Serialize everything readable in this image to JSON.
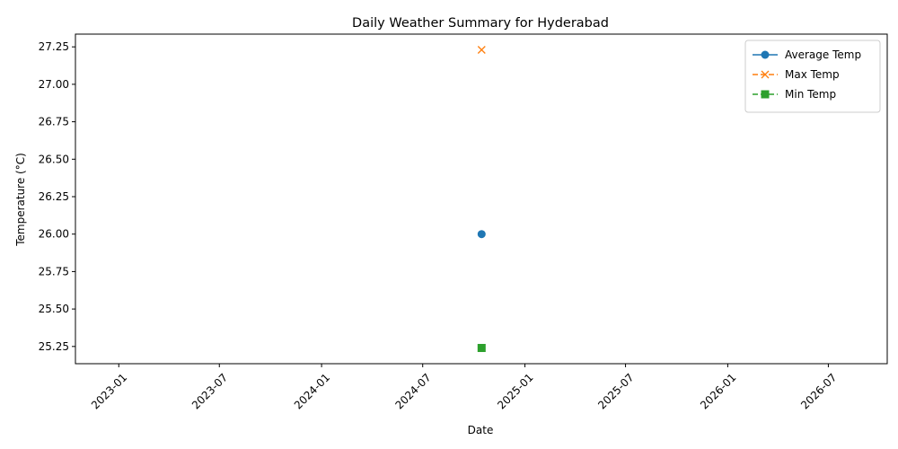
{
  "chart_data": {
    "type": "line",
    "title": "Daily Weather Summary for Hyderabad",
    "xlabel": "Date",
    "ylabel": "Temperature (°C)",
    "x": [
      "2024-10-15"
    ],
    "series": [
      {
        "name": "Average Temp",
        "values": [
          26.0
        ],
        "color": "#1f77b4",
        "marker": "circle",
        "line_style": "solid"
      },
      {
        "name": "Max Temp",
        "values": [
          27.23
        ],
        "color": "#ff7f0e",
        "marker": "x",
        "line_style": "dashed"
      },
      {
        "name": "Min Temp",
        "values": [
          25.24
        ],
        "color": "#2ca02c",
        "marker": "square",
        "line_style": "dashed"
      }
    ],
    "xlim": [
      "2022-10-15",
      "2026-10-15"
    ],
    "ylim": [
      25.135,
      27.335
    ],
    "x_ticks": [
      "2023-01",
      "2023-07",
      "2024-01",
      "2024-07",
      "2025-01",
      "2025-07",
      "2026-01",
      "2026-07"
    ],
    "y_ticks": [
      "25.25",
      "25.50",
      "25.75",
      "26.00",
      "26.25",
      "26.50",
      "26.75",
      "27.00",
      "27.25"
    ],
    "x_tick_rotation": 45,
    "legend_position": "top-right",
    "grid": false
  }
}
